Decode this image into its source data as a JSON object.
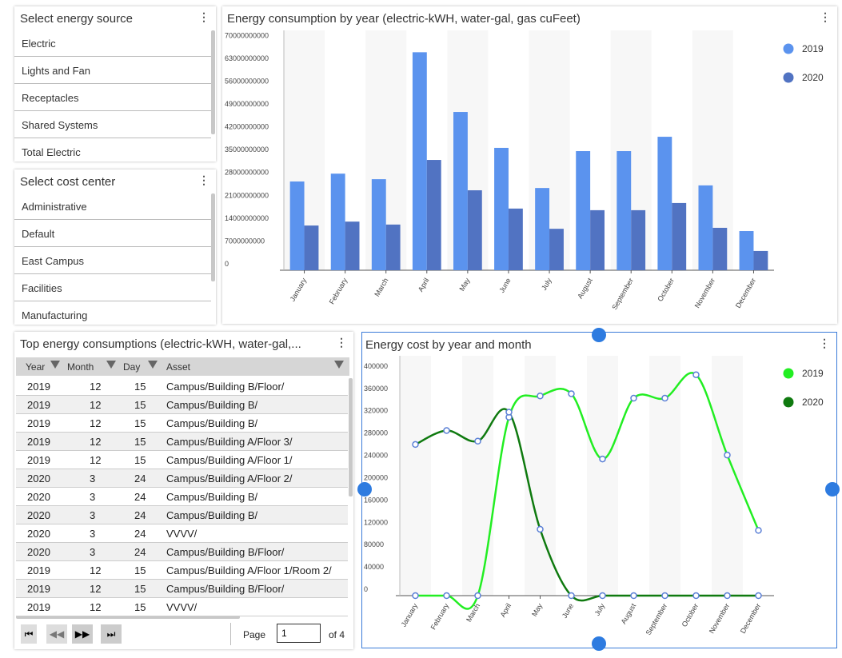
{
  "energy_source": {
    "title": "Select energy source",
    "items": [
      "Electric",
      "Lights and Fan",
      "Receptacles",
      "Shared Systems",
      "Total Electric"
    ]
  },
  "cost_center": {
    "title": "Select cost center",
    "items": [
      "Administrative",
      "Default",
      "East Campus",
      "Facilities",
      "Manufacturing"
    ]
  },
  "table": {
    "title": "Top energy consumptions (electric-kWH, water-gal,...",
    "columns": [
      "Year",
      "Month",
      "Day",
      "Asset"
    ],
    "rows": [
      [
        2019,
        12,
        15,
        "Campus/Building B/Floor/"
      ],
      [
        2019,
        12,
        15,
        "Campus/Building B/"
      ],
      [
        2019,
        12,
        15,
        "Campus/Building B/"
      ],
      [
        2019,
        12,
        15,
        "Campus/Building A/Floor 3/"
      ],
      [
        2019,
        12,
        15,
        "Campus/Building A/Floor 1/"
      ],
      [
        2020,
        3,
        24,
        "Campus/Building A/Floor 2/"
      ],
      [
        2020,
        3,
        24,
        "Campus/Building B/"
      ],
      [
        2020,
        3,
        24,
        "Campus/Building B/"
      ],
      [
        2020,
        3,
        24,
        "VVVV/"
      ],
      [
        2020,
        3,
        24,
        "Campus/Building B/Floor/"
      ],
      [
        2019,
        12,
        15,
        "Campus/Building A/Floor 1/Room 2/"
      ],
      [
        2019,
        12,
        15,
        "Campus/Building B/Floor/"
      ],
      [
        2019,
        12,
        15,
        "VVVV/"
      ]
    ],
    "pager": {
      "label": "Page",
      "page": 1,
      "of": "of 4"
    }
  },
  "chart_data": [
    {
      "type": "bar",
      "title": "Energy consumption by year (electric-kWH, water-gal, gas cuFeet)",
      "categories": [
        "January",
        "February",
        "March",
        "April",
        "May",
        "June",
        "July",
        "August",
        "September",
        "October",
        "November",
        "December"
      ],
      "series": [
        {
          "name": "2019",
          "color": "#5b93ee",
          "values": [
            27200000000,
            29600000000,
            27900000000,
            66800000000,
            48500000000,
            37500000000,
            25200000000,
            36500000000,
            36500000000,
            40900000000,
            26000000000,
            12000000000
          ]
        },
        {
          "name": "2020",
          "color": "#5173c2",
          "values": [
            13700000000,
            14900000000,
            14000000000,
            33800000000,
            24500000000,
            18900000000,
            12700000000,
            18400000000,
            18400000000,
            20600000000,
            13000000000,
            5900000000
          ]
        }
      ],
      "ylim": [
        0,
        73500000000
      ],
      "yticks": [
        0,
        7000000000,
        14000000000,
        21000000000,
        28000000000,
        35000000000,
        42000000000,
        49000000000,
        56000000000,
        63000000000,
        70000000000
      ],
      "grid": false,
      "legend": "right"
    },
    {
      "type": "line",
      "title": "Energy cost by year and month",
      "categories": [
        "January",
        "February",
        "March",
        "April",
        "May",
        "June",
        "July",
        "August",
        "September",
        "October",
        "November",
        "December"
      ],
      "series": [
        {
          "name": "2019",
          "color": "#22ee22",
          "values": [
            0,
            0,
            0,
            320000,
            358000,
            362000,
            245000,
            354000,
            354000,
            396000,
            252000,
            117000
          ]
        },
        {
          "name": "2020",
          "color": "#0f7a0f",
          "values": [
            271000,
            296000,
            277000,
            329000,
            119000,
            0,
            0,
            0,
            0,
            0,
            0,
            0
          ]
        }
      ],
      "ylim": [
        0,
        430000
      ],
      "yticks": [
        0,
        40000,
        80000,
        120000,
        160000,
        200000,
        240000,
        280000,
        320000,
        360000,
        400000
      ],
      "grid": false,
      "legend": "right"
    }
  ]
}
